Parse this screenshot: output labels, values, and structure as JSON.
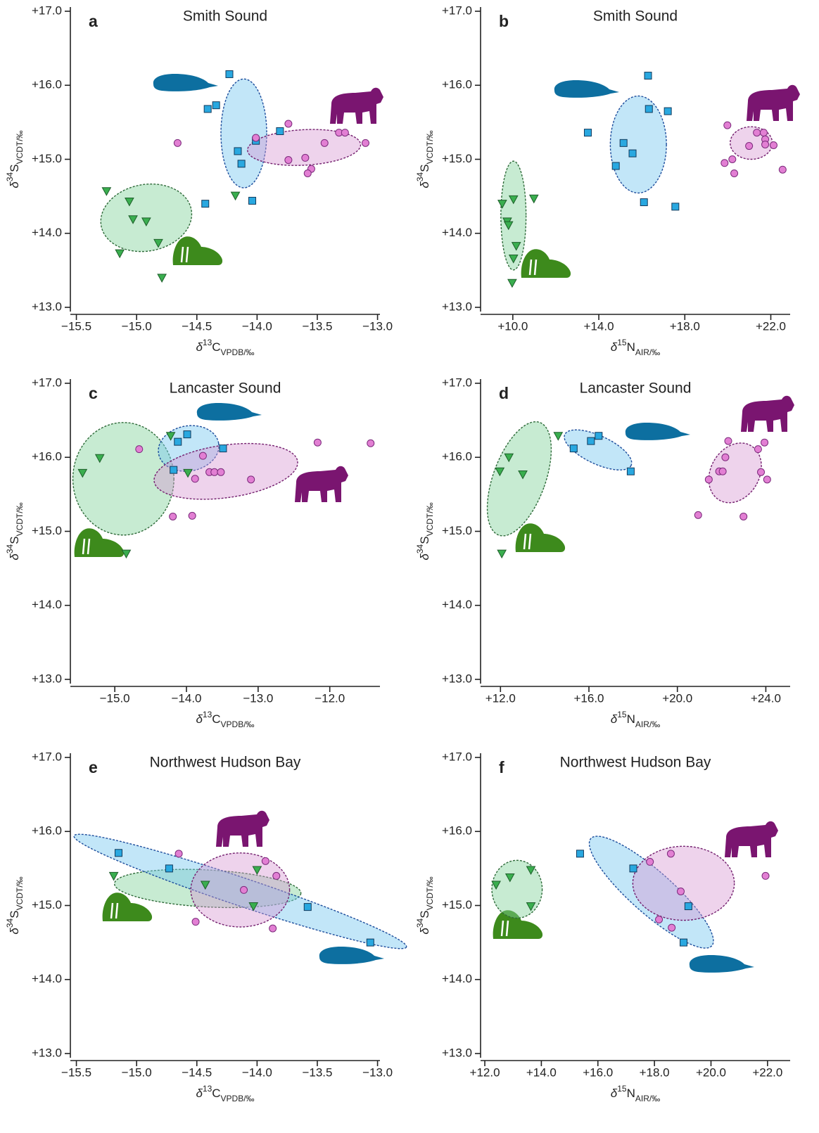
{
  "chart_data": [
    {
      "type": "scatter",
      "panel": "a",
      "title": "Smith Sound",
      "xlabel": [
        "δ",
        "13",
        "C",
        "VPDB/‰"
      ],
      "ylabel": [
        "δ",
        "34",
        "S",
        "VCDT/‰"
      ],
      "xlim": [
        -15.55,
        -12.98
      ],
      "ylim": [
        13,
        17
      ],
      "xticks": [
        {
          "value": -15.5,
          "label": "−15.5"
        },
        {
          "value": -15.0,
          "label": "−15.0"
        },
        {
          "value": -14.5,
          "label": "−14.5"
        },
        {
          "value": -14.0,
          "label": "−14.0"
        },
        {
          "value": -13.5,
          "label": "−13.5"
        },
        {
          "value": -13.0,
          "label": "−13.0"
        }
      ],
      "yticks": [
        {
          "value": 13,
          "label": "+13.0"
        },
        {
          "value": 14,
          "label": "+14.0"
        },
        {
          "value": 15,
          "label": "+15.0"
        },
        {
          "value": 16,
          "label": "+16.0"
        },
        {
          "value": 17,
          "label": "+17.0"
        }
      ],
      "series": [
        {
          "color": "#3aae4f",
          "marker": "triangle",
          "x": [
            -15.25,
            -15.06,
            -15.03,
            -14.92,
            -15.14,
            -14.82,
            -14.79,
            -14.18
          ],
          "y": [
            14.57,
            14.43,
            14.19,
            14.16,
            13.73,
            13.87,
            13.4,
            14.51
          ],
          "ellipse": {
            "center": [
              -14.92,
              14.21
            ],
            "width": 0.76,
            "height": 0.9,
            "angle": -10
          }
        },
        {
          "color": "#29a8e0",
          "marker": "square",
          "x": [
            -14.23,
            -14.34,
            -14.41,
            -14.16,
            -14.13,
            -14.01,
            -13.81,
            -14.43,
            -14.04
          ],
          "y": [
            16.15,
            15.73,
            15.68,
            15.11,
            14.94,
            15.25,
            15.38,
            14.4,
            14.44
          ],
          "ellipse": {
            "center": [
              -14.11,
              15.35
            ],
            "width": 0.38,
            "height": 1.47,
            "angle": 0
          }
        },
        {
          "color": "#e27fd3",
          "marker": "circle",
          "x": [
            -14.66,
            -14.01,
            -13.74,
            -13.74,
            -13.6,
            -13.55,
            -13.58,
            -13.44,
            -13.32,
            -13.27,
            -13.1
          ],
          "y": [
            15.22,
            15.29,
            15.48,
            14.99,
            15.02,
            14.87,
            14.81,
            15.22,
            15.36,
            15.36,
            15.22
          ],
          "ellipse": {
            "center": [
              -13.61,
              15.16
            ],
            "width": 0.94,
            "height": 0.48,
            "angle": -3
          }
        }
      ]
    },
    {
      "type": "scatter",
      "panel": "b",
      "title": "Smith Sound",
      "xlabel": [
        "δ",
        "15",
        "N",
        "AIR/‰"
      ],
      "ylabel": [
        "δ",
        "34",
        "S",
        "VCDT/‰"
      ],
      "xlim": [
        8.5,
        22.9
      ],
      "ylim": [
        13,
        17
      ],
      "xticks": [
        {
          "value": 10,
          "label": "+10.0"
        },
        {
          "value": 14,
          "label": "+14.0"
        },
        {
          "value": 18,
          "label": "+18.0"
        },
        {
          "value": 22,
          "label": "+22.0"
        }
      ],
      "yticks": [
        {
          "value": 13,
          "label": "+13.0"
        },
        {
          "value": 14,
          "label": "+14.0"
        },
        {
          "value": 15,
          "label": "+15.0"
        },
        {
          "value": 16,
          "label": "+16.0"
        },
        {
          "value": 17,
          "label": "+17.0"
        }
      ],
      "series": [
        {
          "color": "#3aae4f",
          "marker": "triangle",
          "x": [
            9.51,
            9.74,
            9.8,
            10.03,
            10.16,
            10.03,
            9.97,
            10.98
          ],
          "y": [
            14.4,
            14.16,
            14.11,
            14.46,
            13.83,
            13.66,
            13.33,
            14.47
          ],
          "ellipse": {
            "center": [
              10.03,
              14.24
            ],
            "width": 1.17,
            "height": 1.47,
            "angle": 0
          }
        },
        {
          "color": "#29a8e0",
          "marker": "square",
          "x": [
            16.29,
            16.33,
            17.21,
            13.49,
            15.15,
            15.57,
            14.79,
            16.1,
            17.56
          ],
          "y": [
            16.13,
            15.68,
            15.65,
            15.36,
            15.22,
            15.08,
            14.91,
            14.42,
            14.36
          ],
          "ellipse": {
            "center": [
              15.84,
              15.2
            ],
            "width": 2.61,
            "height": 1.31,
            "angle": 0
          }
        },
        {
          "color": "#e27fd3",
          "marker": "circle",
          "x": [
            19.98,
            21.35,
            21.67,
            21.74,
            21.74,
            20.99,
            22.13,
            19.85,
            20.21,
            20.3,
            22.55
          ],
          "y": [
            15.46,
            15.36,
            15.36,
            15.27,
            15.2,
            15.18,
            15.19,
            14.95,
            15.0,
            14.81,
            14.86
          ],
          "ellipse": {
            "center": [
              21.09,
              15.22
            ],
            "width": 1.96,
            "height": 0.44,
            "angle": 0
          }
        }
      ]
    },
    {
      "type": "scatter",
      "panel": "c",
      "title": "Lancaster Sound",
      "xlabel": [
        "δ",
        "13",
        "C",
        "VPDB/‰"
      ],
      "ylabel": [
        "δ",
        "34",
        "S",
        "VCDT/‰"
      ],
      "xlim": [
        -15.62,
        -11.3
      ],
      "ylim": [
        13,
        17
      ],
      "xticks": [
        {
          "value": -15.0,
          "label": "−15.0"
        },
        {
          "value": -14.0,
          "label": "−14.0"
        },
        {
          "value": -13.0,
          "label": "−13.0"
        },
        {
          "value": -12.0,
          "label": "−12.0"
        }
      ],
      "yticks": [
        {
          "value": 13,
          "label": "+13.0"
        },
        {
          "value": 14,
          "label": "+14.0"
        },
        {
          "value": 15,
          "label": "+15.0"
        },
        {
          "value": 16,
          "label": "+16.0"
        },
        {
          "value": 17,
          "label": "+17.0"
        }
      ],
      "series": [
        {
          "color": "#3aae4f",
          "marker": "triangle",
          "x": [
            -15.45,
            -15.21,
            -14.22,
            -13.98,
            -14.84
          ],
          "y": [
            15.79,
            15.99,
            16.29,
            15.79,
            14.7
          ],
          "ellipse": {
            "center": [
              -14.88,
              15.71
            ],
            "width": 1.41,
            "height": 1.52,
            "angle": 0
          }
        },
        {
          "color": "#29a8e0",
          "marker": "square",
          "x": [
            -14.12,
            -13.99,
            -13.49,
            -14.18
          ],
          "y": [
            16.21,
            16.31,
            16.12,
            15.83
          ],
          "ellipse": {
            "center": [
              -13.97,
              16.12
            ],
            "width": 0.85,
            "height": 0.61,
            "angle": -10
          }
        },
        {
          "color": "#e27fd3",
          "marker": "circle",
          "x": [
            -14.66,
            -13.77,
            -13.88,
            -13.68,
            -13.61,
            -13.52,
            -13.1,
            -12.17,
            -11.43,
            -14.19,
            -13.92
          ],
          "y": [
            16.11,
            16.02,
            15.71,
            15.8,
            15.8,
            15.8,
            15.7,
            16.2,
            16.19,
            15.2,
            15.21
          ],
          "ellipse": {
            "center": [
              -13.45,
              15.81
            ],
            "width": 2.02,
            "height": 0.71,
            "angle": -8
          }
        }
      ]
    },
    {
      "type": "scatter",
      "panel": "d",
      "title": "Lancaster Sound",
      "xlabel": [
        "δ",
        "15",
        "N",
        "AIR/‰"
      ],
      "ylabel": [
        "δ",
        "34",
        "S",
        "VCDT/‰"
      ],
      "xlim": [
        11.1,
        25.1
      ],
      "ylim": [
        13,
        17
      ],
      "xticks": [
        {
          "value": 12,
          "label": "+12.0"
        },
        {
          "value": 16,
          "label": "+16.0"
        },
        {
          "value": 20,
          "label": "+20.0"
        },
        {
          "value": 24,
          "label": "+24.0"
        }
      ],
      "yticks": [
        {
          "value": 13,
          "label": "+13.0"
        },
        {
          "value": 14,
          "label": "+14.0"
        },
        {
          "value": 15,
          "label": "+15.0"
        },
        {
          "value": 16,
          "label": "+16.0"
        },
        {
          "value": 17,
          "label": "+17.0"
        }
      ],
      "series": [
        {
          "color": "#3aae4f",
          "marker": "triangle",
          "x": [
            11.97,
            12.38,
            13.01,
            14.61,
            12.06
          ],
          "y": [
            15.81,
            16.0,
            15.77,
            16.29,
            14.7
          ],
          "ellipse": {
            "center": [
              12.85,
              15.71
            ],
            "width": 2.36,
            "height": 1.62,
            "angle": 20
          }
        },
        {
          "color": "#29a8e0",
          "marker": "square",
          "x": [
            15.31,
            16.09,
            16.44,
            17.89
          ],
          "y": [
            16.12,
            16.22,
            16.29,
            15.81
          ],
          "ellipse": {
            "center": [
              16.41,
              16.1
            ],
            "width": 3.31,
            "height": 0.38,
            "angle": 25
          }
        },
        {
          "color": "#e27fd3",
          "marker": "circle",
          "x": [
            22.3,
            23.94,
            22.17,
            21.42,
            21.89,
            22.05,
            23.65,
            23.78,
            24.06,
            20.94,
            22.99
          ],
          "y": [
            16.22,
            16.2,
            16.0,
            15.7,
            15.81,
            15.81,
            16.11,
            15.8,
            15.7,
            15.22,
            15.2
          ],
          "ellipse": {
            "center": [
              22.61,
              15.79
            ],
            "width": 2.2,
            "height": 0.85,
            "angle": 30
          }
        }
      ]
    },
    {
      "type": "scatter",
      "panel": "e",
      "title": "Northwest Hudson Bay",
      "xlabel": [
        "δ",
        "13",
        "C",
        "VPDB/‰"
      ],
      "ylabel": [
        "δ",
        "34",
        "S",
        "VCDT/‰"
      ],
      "xlim": [
        -15.55,
        -12.98
      ],
      "ylim": [
        13,
        17
      ],
      "xticks": [
        {
          "value": -15.5,
          "label": "−15.5"
        },
        {
          "value": -15.0,
          "label": "−15.0"
        },
        {
          "value": -14.5,
          "label": "−14.5"
        },
        {
          "value": -14.0,
          "label": "−14.0"
        },
        {
          "value": -13.5,
          "label": "−13.5"
        },
        {
          "value": -13.0,
          "label": "−13.0"
        }
      ],
      "yticks": [
        {
          "value": 13,
          "label": "+13.0"
        },
        {
          "value": 14,
          "label": "+14.0"
        },
        {
          "value": 15,
          "label": "+15.0"
        },
        {
          "value": 16,
          "label": "+16.0"
        },
        {
          "value": 17,
          "label": "+17.0"
        }
      ],
      "series": [
        {
          "color": "#3aae4f",
          "marker": "triangle",
          "x": [
            -15.19,
            -14.43,
            -14.0,
            -14.03
          ],
          "y": [
            15.4,
            15.28,
            15.48,
            14.99
          ],
          "ellipse": {
            "center": [
              -14.41,
              15.23
            ],
            "width": 1.55,
            "height": 0.5,
            "angle": 3
          }
        },
        {
          "color": "#29a8e0",
          "marker": "square",
          "x": [
            -15.15,
            -14.73,
            -13.58,
            -13.06
          ],
          "y": [
            15.71,
            15.5,
            14.98,
            14.5
          ],
          "ellipse": {
            "center": [
              -14.14,
              15.19
            ],
            "width": 2.91,
            "height": 0.38,
            "angle": 18.5
          }
        },
        {
          "color": "#e27fd3",
          "marker": "circle",
          "x": [
            -14.65,
            -13.93,
            -13.84,
            -14.11,
            -14.51,
            -13.87
          ],
          "y": [
            15.7,
            15.6,
            15.4,
            15.21,
            14.78,
            14.69
          ],
          "ellipse": {
            "center": [
              -14.14,
              15.21
            ],
            "width": 0.82,
            "height": 1.0,
            "angle": 0
          }
        }
      ]
    },
    {
      "type": "scatter",
      "panel": "f",
      "title": "Northwest Hudson Bay",
      "xlabel": [
        "δ",
        "15",
        "N",
        "AIR/‰"
      ],
      "ylabel": [
        "δ",
        "34",
        "S",
        "VCDT/‰"
      ],
      "xlim": [
        11.85,
        22.8
      ],
      "ylim": [
        13,
        17
      ],
      "xticks": [
        {
          "value": 12,
          "label": "+12.0"
        },
        {
          "value": 14,
          "label": "+14.0"
        },
        {
          "value": 16,
          "label": "+16.0"
        },
        {
          "value": 18,
          "label": "+18.0"
        },
        {
          "value": 20,
          "label": "+20.0"
        },
        {
          "value": 22,
          "label": "+22.0"
        }
      ],
      "yticks": [
        {
          "value": 13,
          "label": "+13.0"
        },
        {
          "value": 14,
          "label": "+14.0"
        },
        {
          "value": 15,
          "label": "+15.0"
        },
        {
          "value": 16,
          "label": "+16.0"
        },
        {
          "value": 17,
          "label": "+17.0"
        }
      ],
      "series": [
        {
          "color": "#3aae4f",
          "marker": "triangle",
          "x": [
            12.4,
            12.89,
            13.63,
            13.63
          ],
          "y": [
            15.28,
            15.38,
            15.48,
            14.99
          ],
          "ellipse": {
            "center": [
              13.14,
              15.22
            ],
            "width": 1.78,
            "height": 0.78,
            "angle": 0
          }
        },
        {
          "color": "#29a8e0",
          "marker": "square",
          "x": [
            15.37,
            17.25,
            19.2,
            19.03
          ],
          "y": [
            15.7,
            15.5,
            14.99,
            14.5
          ],
          "ellipse": {
            "center": [
              17.89,
              15.18
            ],
            "width": 5.72,
            "height": 0.57,
            "angle": 41.6
          }
        },
        {
          "color": "#e27fd3",
          "marker": "circle",
          "x": [
            17.84,
            18.58,
            18.93,
            18.16,
            18.61,
            21.93
          ],
          "y": [
            15.59,
            15.7,
            15.19,
            14.81,
            14.7,
            15.4
          ],
          "ellipse": {
            "center": [
              19.03,
              15.3
            ],
            "width": 3.59,
            "height": 1.0,
            "angle": 0
          }
        }
      ]
    }
  ]
}
